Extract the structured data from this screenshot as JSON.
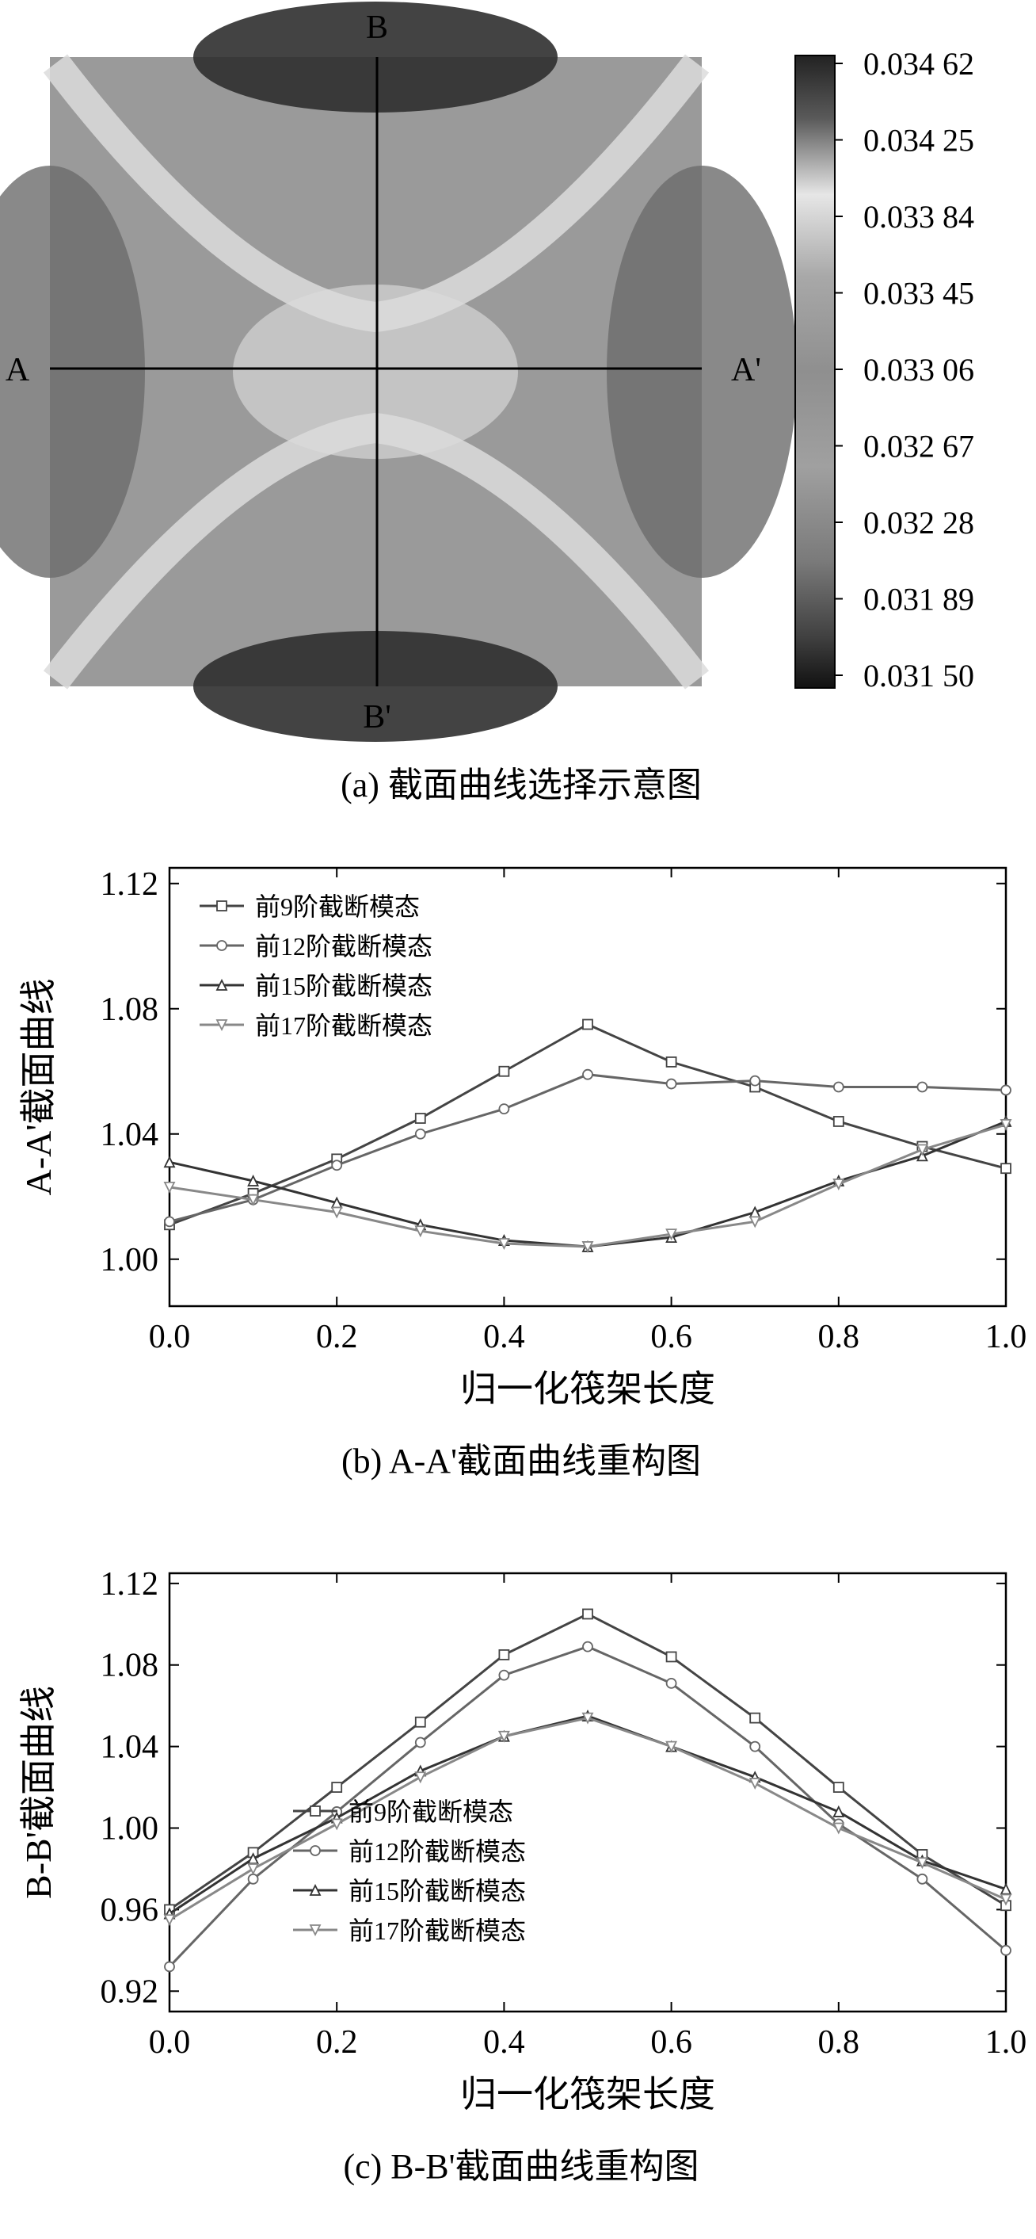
{
  "panel_a": {
    "label_top": "B",
    "label_bottom": "B'",
    "label_left": "A",
    "label_right": "A'",
    "caption": "(a) 截面曲线选择示意图",
    "colorbar_ticks": [
      "0.034 62",
      "0.034 25",
      "0.033 84",
      "0.033 45",
      "0.033 06",
      "0.032 67",
      "0.032 28",
      "0.031 89",
      "0.031 50"
    ]
  },
  "chart_data": [
    {
      "type": "line",
      "caption": "(b) A-A'截面曲线重构图",
      "xlabel": "归一化筏架长度",
      "ylabel": "A-A'截面曲线",
      "xlim": [
        0,
        1
      ],
      "ylim": [
        0.985,
        1.125
      ],
      "xticks": [
        "0.0",
        "0.2",
        "0.4",
        "0.6",
        "0.8",
        "1.0"
      ],
      "yticks": [
        "1.00",
        "1.04",
        "1.08",
        "1.12"
      ],
      "legend_position": "top-left",
      "x": [
        0.0,
        0.1,
        0.2,
        0.3,
        0.4,
        0.5,
        0.6,
        0.7,
        0.8,
        0.9,
        1.0
      ],
      "series": [
        {
          "name": "前9阶截断模态",
          "marker": "square",
          "values": [
            1.011,
            1.021,
            1.032,
            1.045,
            1.06,
            1.075,
            1.063,
            1.055,
            1.044,
            1.036,
            1.029
          ]
        },
        {
          "name": "前12阶截断模态",
          "marker": "circle",
          "values": [
            1.012,
            1.019,
            1.03,
            1.04,
            1.048,
            1.059,
            1.056,
            1.057,
            1.055,
            1.055,
            1.054
          ]
        },
        {
          "name": "前15阶截断模态",
          "marker": "triangle-up",
          "values": [
            1.031,
            1.025,
            1.018,
            1.011,
            1.006,
            1.004,
            1.007,
            1.015,
            1.025,
            1.033,
            1.044
          ]
        },
        {
          "name": "前17阶截断模态",
          "marker": "triangle-down",
          "values": [
            1.023,
            1.019,
            1.015,
            1.009,
            1.005,
            1.004,
            1.008,
            1.012,
            1.024,
            1.035,
            1.043
          ]
        }
      ]
    },
    {
      "type": "line",
      "caption": "(c) B-B'截面曲线重构图",
      "xlabel": "归一化筏架长度",
      "ylabel": "B-B'截面曲线",
      "xlim": [
        0,
        1
      ],
      "ylim": [
        0.91,
        1.125
      ],
      "xticks": [
        "0.0",
        "0.2",
        "0.4",
        "0.6",
        "0.8",
        "1.0"
      ],
      "yticks": [
        "0.92",
        "0.96",
        "1.00",
        "1.04",
        "1.08",
        "1.12"
      ],
      "legend_position": "bottom-left",
      "x": [
        0.0,
        0.1,
        0.2,
        0.3,
        0.4,
        0.5,
        0.6,
        0.7,
        0.8,
        0.9,
        1.0
      ],
      "series": [
        {
          "name": "前9阶截断模态",
          "marker": "square",
          "values": [
            0.96,
            0.988,
            1.02,
            1.052,
            1.085,
            1.105,
            1.084,
            1.054,
            1.02,
            0.987,
            0.962
          ]
        },
        {
          "name": "前12阶截断模态",
          "marker": "circle",
          "values": [
            0.932,
            0.975,
            1.008,
            1.042,
            1.075,
            1.089,
            1.071,
            1.04,
            1.002,
            0.975,
            0.94
          ]
        },
        {
          "name": "前15阶截断模态",
          "marker": "triangle-up",
          "values": [
            0.958,
            0.985,
            1.005,
            1.028,
            1.045,
            1.055,
            1.04,
            1.025,
            1.008,
            0.984,
            0.97
          ]
        },
        {
          "name": "前17阶截断模态",
          "marker": "triangle-down",
          "values": [
            0.955,
            0.98,
            1.002,
            1.025,
            1.045,
            1.054,
            1.04,
            1.022,
            1.0,
            0.983,
            0.965
          ]
        }
      ]
    }
  ]
}
